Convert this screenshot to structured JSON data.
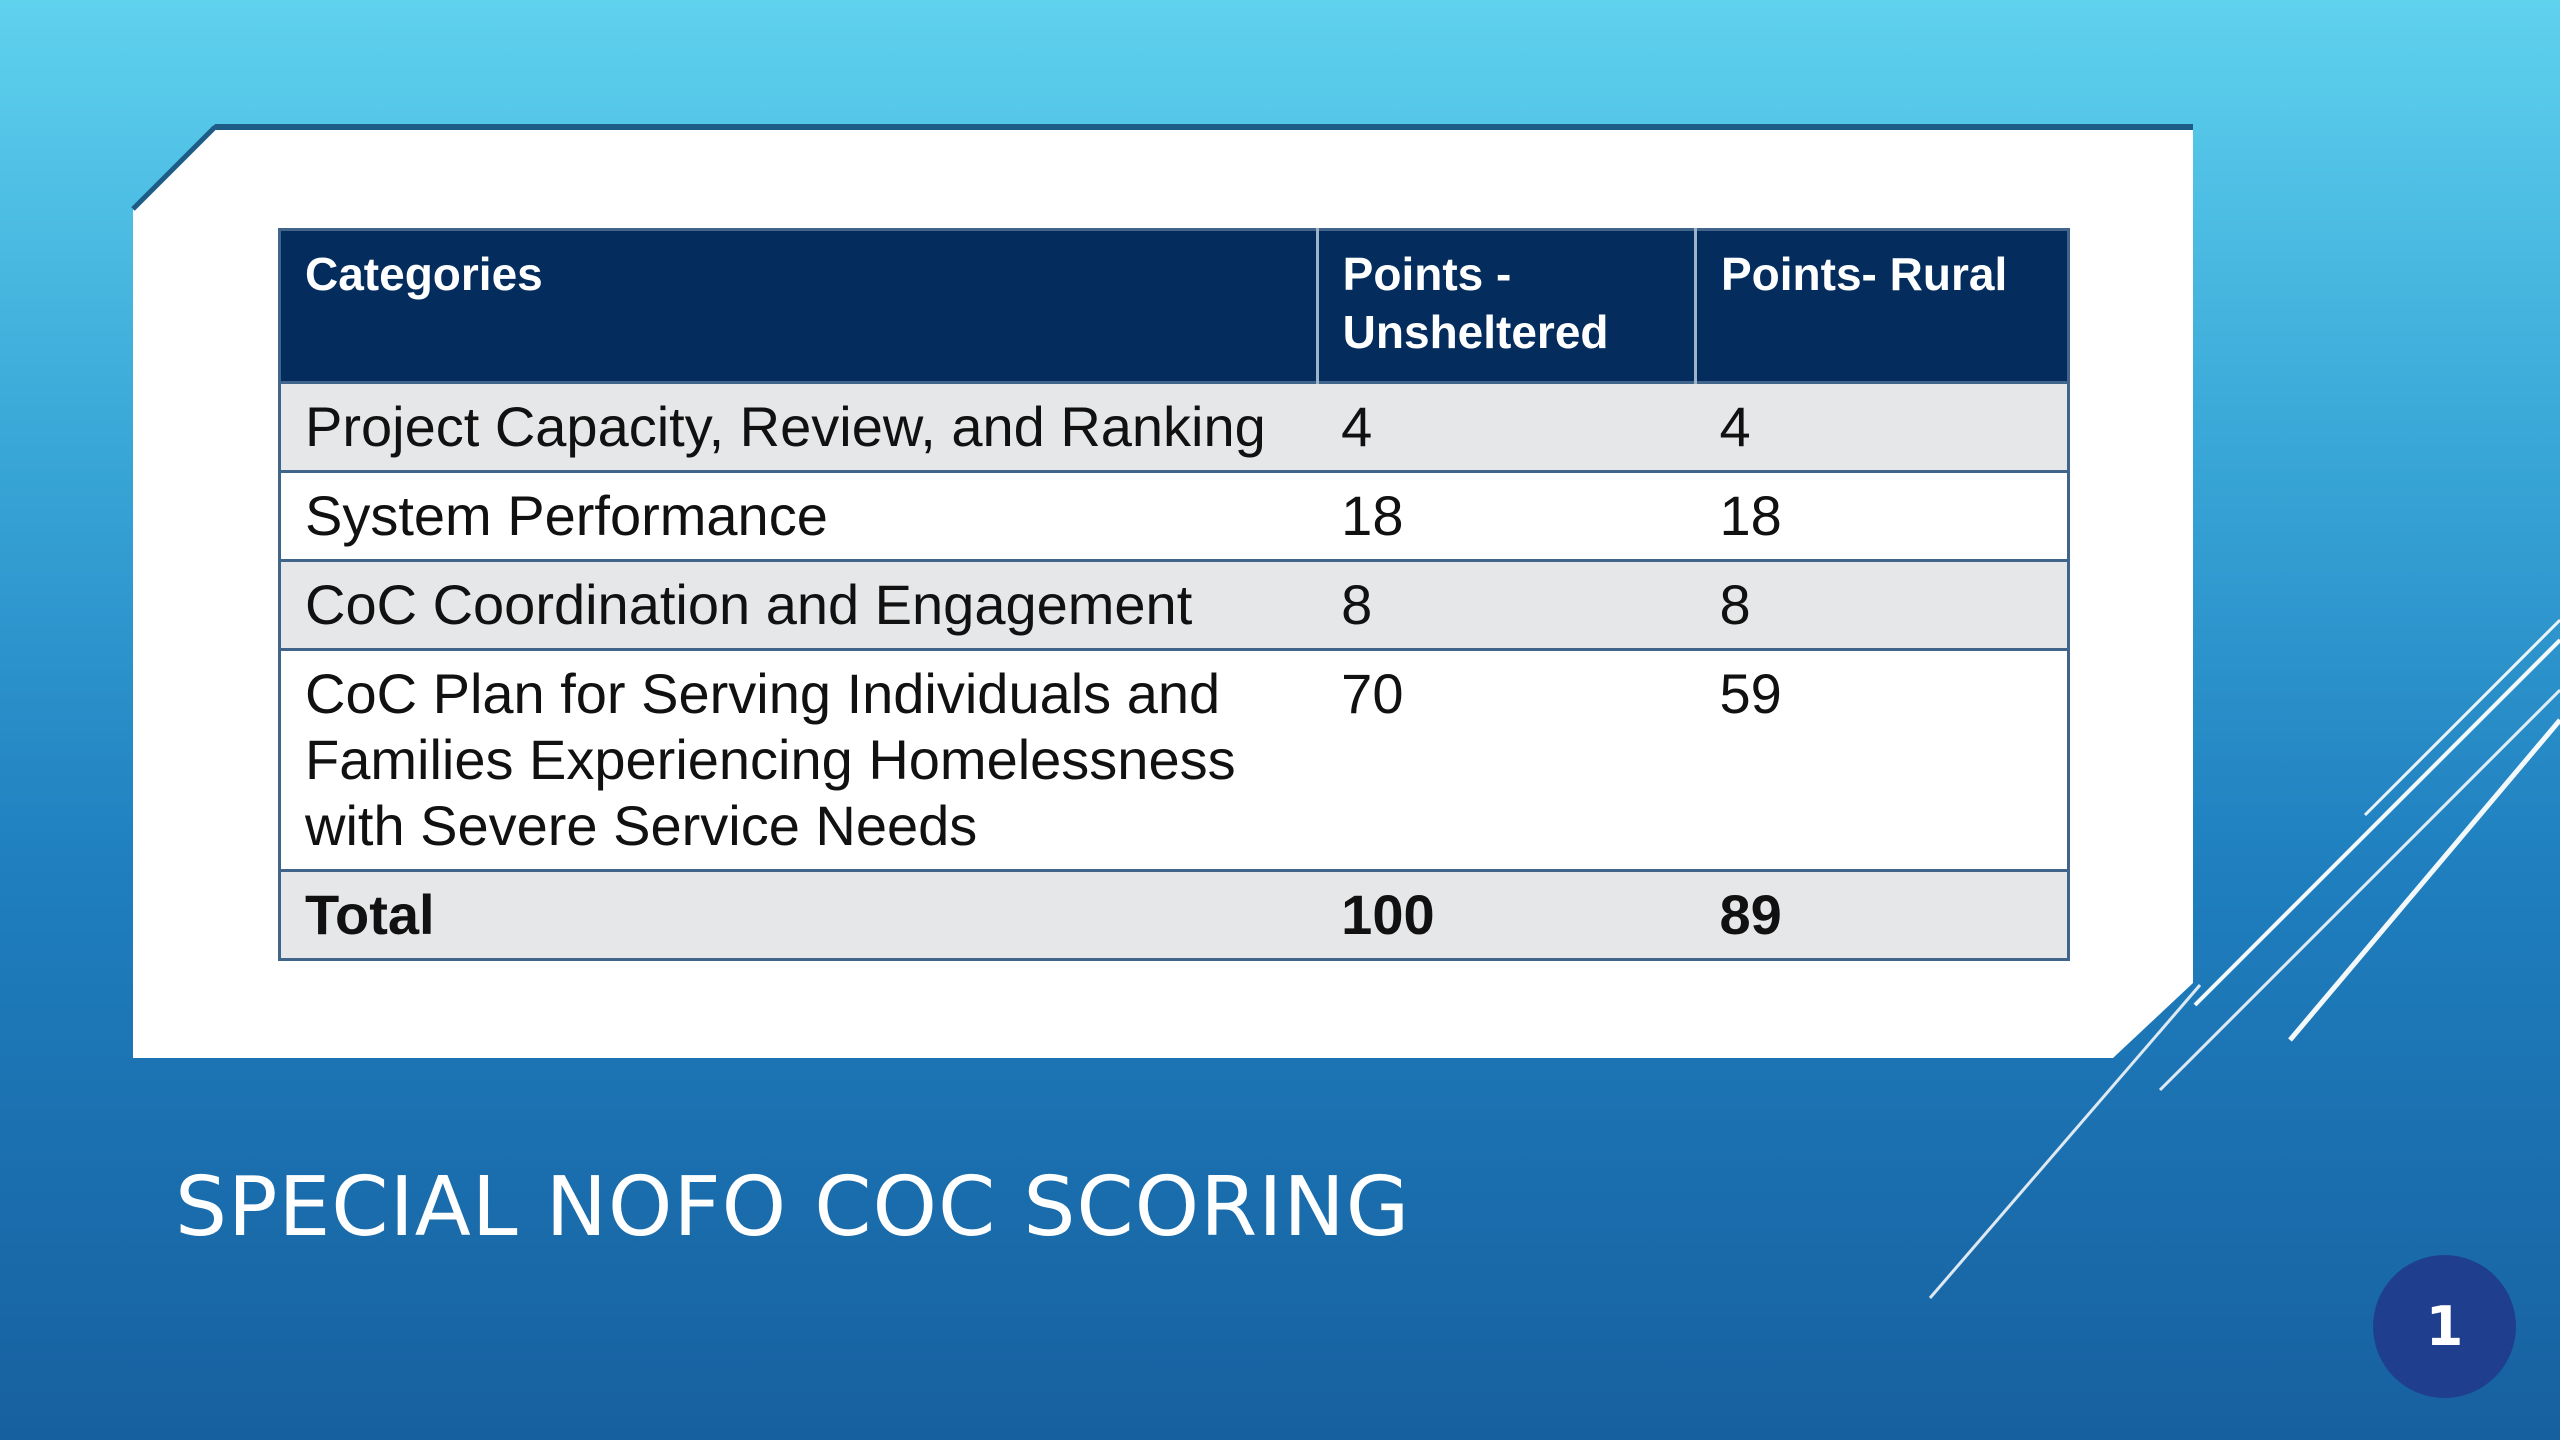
{
  "slide": {
    "title": "SPECIAL NOFO COC SCORING",
    "page_number": "1"
  },
  "table": {
    "headers": {
      "category": "Categories",
      "unsheltered": "Points - Unsheltered",
      "rural": "Points- Rural"
    },
    "rows": [
      {
        "category": "Project Capacity, Review, and Ranking",
        "unsheltered": "4",
        "rural": "4"
      },
      {
        "category": "System Performance",
        "unsheltered": "18",
        "rural": "18"
      },
      {
        "category": "CoC Coordination and Engagement",
        "unsheltered": "8",
        "rural": "8"
      },
      {
        "category": "CoC Plan for Serving Individuals and Families Experiencing Homelessness with Severe Service Needs",
        "unsheltered": "70",
        "rural": "59"
      }
    ],
    "total": {
      "category": "Total",
      "unsheltered": "100",
      "rural": "89"
    }
  },
  "colors": {
    "header_bg": "#042d5e",
    "row_shade": "#e6e7e9",
    "badge": "#1f3f8e"
  }
}
